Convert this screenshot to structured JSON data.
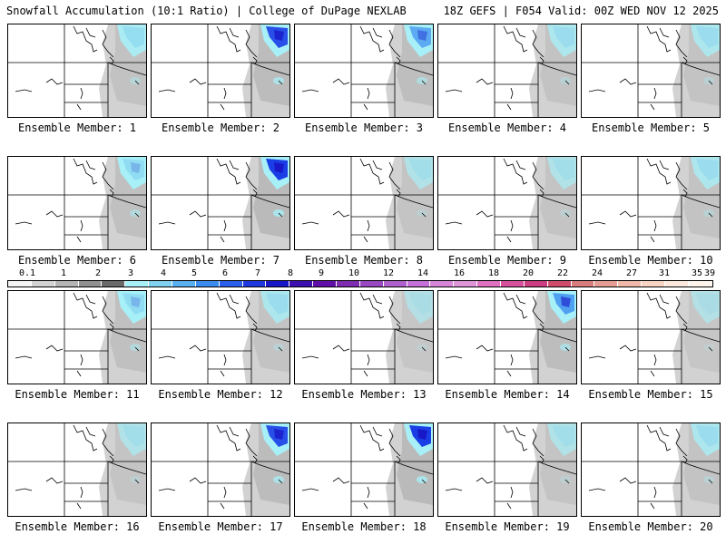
{
  "header": {
    "left": "Snowfall Accumulation (10:1 Ratio) | College of DuPage NEXLAB",
    "right": "18Z GEFS | F054 Valid: 00Z WED NOV 12 2025"
  },
  "legend": {
    "ticks": [
      "0.1",
      "1",
      "2",
      "3",
      "4",
      "5",
      "6",
      "7",
      "8",
      "9",
      "10",
      "12",
      "14",
      "16",
      "18",
      "20",
      "22",
      "24",
      "27",
      "31",
      "35",
      "39"
    ],
    "colors": [
      "#f4f4f4",
      "#d2d2d2",
      "#b4b4b4",
      "#909090",
      "#6a6a6a",
      "#a8f0f8",
      "#80d0f0",
      "#58b0f0",
      "#3a8cf0",
      "#2a60ec",
      "#1e38e0",
      "#1818c8",
      "#3c10b0",
      "#6010a8",
      "#7e2cb0",
      "#9848c0",
      "#b060cc",
      "#c470d8",
      "#d884d8",
      "#e094d8",
      "#e070c0",
      "#d8509c",
      "#cc3c80",
      "#d04c6c",
      "#d87c7c",
      "#e49c94",
      "#f0b8a8",
      "#f8d4c4",
      "#fce8dc",
      "#fff4ec"
    ]
  },
  "members": [
    {
      "label": "Ensemble Member: 1",
      "intensity": 0.5
    },
    {
      "label": "Ensemble Member: 2",
      "intensity": 0.9
    },
    {
      "label": "Ensemble Member: 3",
      "intensity": 0.7
    },
    {
      "label": "Ensemble Member: 4",
      "intensity": 0.4
    },
    {
      "label": "Ensemble Member: 5",
      "intensity": 0.4
    },
    {
      "label": "Ensemble Member: 6",
      "intensity": 0.6
    },
    {
      "label": "Ensemble Member: 7",
      "intensity": 1.0
    },
    {
      "label": "Ensemble Member: 8",
      "intensity": 0.3
    },
    {
      "label": "Ensemble Member: 9",
      "intensity": 0.3
    },
    {
      "label": "Ensemble Member: 10",
      "intensity": 0.4
    },
    {
      "label": "Ensemble Member: 11",
      "intensity": 0.6
    },
    {
      "label": "Ensemble Member: 12",
      "intensity": 0.4
    },
    {
      "label": "Ensemble Member: 13",
      "intensity": 0.2
    },
    {
      "label": "Ensemble Member: 14",
      "intensity": 0.8
    },
    {
      "label": "Ensemble Member: 15",
      "intensity": 0.2
    },
    {
      "label": "Ensemble Member: 16",
      "intensity": 0.3
    },
    {
      "label": "Ensemble Member: 17",
      "intensity": 0.9
    },
    {
      "label": "Ensemble Member: 18",
      "intensity": 1.0
    },
    {
      "label": "Ensemble Member: 19",
      "intensity": 0.3
    },
    {
      "label": "Ensemble Member: 20",
      "intensity": 0.4
    }
  ]
}
